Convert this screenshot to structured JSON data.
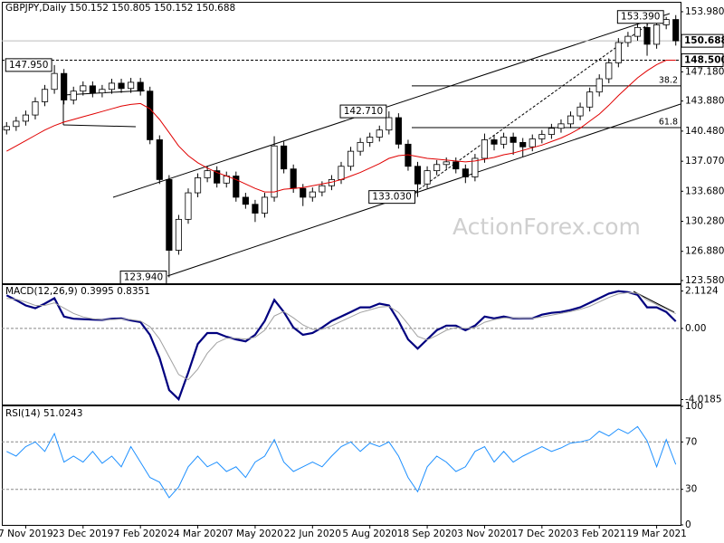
{
  "chart_data": [
    {
      "type": "candlestick",
      "title": "GBPJPY,Daily  150.152 150.805 150.152 150.688",
      "categories": [
        null,
        null,
        "7 Nov 2019",
        null,
        null,
        null,
        null,
        null,
        "23 Dec 2019",
        null,
        null,
        null,
        null,
        null,
        "7 Feb 2020",
        null,
        null,
        null,
        null,
        null,
        "24 Mar 2020",
        null,
        null,
        null,
        null,
        null,
        "7 May 2020",
        null,
        null,
        null,
        null,
        null,
        "22 Jun 2020",
        null,
        null,
        null,
        null,
        null,
        "5 Aug 2020",
        null,
        null,
        null,
        null,
        null,
        "18 Sep 2020",
        null,
        null,
        null,
        null,
        null,
        "3 Nov 2020",
        null,
        null,
        null,
        null,
        null,
        "17 Dec 2020",
        null,
        null,
        null,
        null,
        null,
        "3 Feb 2021",
        null,
        null,
        null,
        null,
        null,
        "19 Mar 2021",
        null,
        null
      ],
      "open": [
        140.6,
        141.0,
        141.6,
        142.3,
        143.8,
        145.2,
        147.0,
        144.0,
        145.0,
        145.6,
        144.8,
        145.2,
        145.9,
        145.3,
        146.0,
        145.0,
        139.5,
        135.0,
        127.0,
        130.5,
        133.5,
        135.2,
        136.0,
        134.6,
        135.4,
        133.0,
        132.2,
        131.2,
        133.0,
        138.8,
        136.2,
        134.0,
        133.0,
        133.6,
        134.3,
        135.0,
        136.5,
        138.2,
        139.2,
        139.8,
        140.6,
        142.0,
        139.0,
        136.5,
        134.5,
        136.0,
        136.7,
        137.0,
        136.2,
        135.3,
        137.4,
        139.5,
        139.0,
        139.8,
        139.2,
        138.7,
        139.6,
        140.1,
        140.8,
        141.3,
        142.2,
        143.2,
        144.9,
        146.4,
        148.2,
        150.5,
        151.2,
        152.2,
        150.3,
        152.5,
        153.1
      ],
      "high": [
        141.5,
        142.1,
        142.8,
        144.3,
        145.7,
        147.95,
        147.5,
        145.5,
        146.1,
        146.1,
        145.7,
        146.4,
        146.4,
        146.5,
        146.5,
        145.5,
        140.0,
        135.5,
        131.0,
        134.0,
        135.7,
        136.5,
        136.5,
        135.9,
        135.9,
        133.5,
        132.7,
        133.5,
        139.9,
        139.3,
        136.7,
        134.5,
        134.1,
        134.8,
        135.5,
        137.0,
        138.7,
        139.7,
        140.3,
        141.1,
        142.71,
        142.5,
        139.5,
        137.0,
        136.5,
        137.2,
        137.5,
        137.5,
        136.7,
        137.9,
        140.2,
        140.0,
        140.3,
        140.3,
        139.7,
        140.1,
        140.6,
        141.3,
        141.8,
        142.7,
        143.7,
        145.4,
        146.9,
        148.7,
        151.0,
        151.7,
        152.7,
        152.7,
        153.0,
        153.39,
        153.6
      ],
      "low": [
        140.1,
        140.5,
        141.1,
        141.8,
        143.3,
        144.7,
        143.5,
        143.5,
        144.5,
        144.3,
        144.3,
        144.7,
        144.8,
        144.8,
        144.5,
        139.0,
        134.5,
        123.94,
        126.5,
        130.0,
        133.0,
        134.7,
        134.1,
        134.1,
        132.5,
        131.7,
        130.2,
        130.7,
        132.5,
        135.7,
        133.5,
        132.0,
        132.5,
        133.1,
        133.8,
        134.5,
        136.0,
        137.7,
        138.7,
        139.3,
        140.1,
        138.5,
        136.0,
        133.03,
        134.0,
        135.5,
        136.2,
        135.7,
        134.6,
        134.8,
        136.9,
        138.3,
        138.5,
        137.8,
        137.6,
        138.2,
        139.1,
        139.6,
        140.3,
        140.8,
        141.7,
        142.7,
        144.4,
        145.9,
        147.7,
        150.0,
        150.7,
        149.0,
        149.8,
        152.0,
        150.152
      ],
      "close": [
        141.0,
        141.6,
        142.3,
        143.8,
        145.2,
        147.0,
        144.0,
        145.0,
        145.6,
        144.8,
        145.2,
        145.9,
        145.3,
        146.0,
        145.0,
        139.5,
        135.0,
        127.0,
        130.5,
        133.5,
        135.2,
        136.0,
        134.6,
        135.4,
        133.0,
        132.2,
        131.2,
        133.0,
        138.8,
        136.2,
        134.0,
        133.0,
        133.6,
        134.3,
        135.0,
        136.5,
        138.2,
        139.2,
        139.8,
        140.6,
        142.0,
        139.0,
        136.5,
        134.5,
        136.0,
        136.7,
        137.0,
        136.2,
        135.3,
        137.4,
        139.5,
        139.0,
        139.8,
        139.2,
        138.7,
        139.6,
        140.1,
        140.8,
        141.3,
        142.2,
        143.2,
        144.9,
        146.4,
        148.2,
        150.5,
        151.2,
        152.2,
        150.3,
        152.5,
        153.1,
        150.688
      ],
      "overlay": {
        "color": "#e00000",
        "values": [
          138.2,
          138.8,
          139.4,
          140.0,
          140.6,
          141.1,
          141.5,
          141.8,
          142.1,
          142.4,
          142.7,
          143.0,
          143.3,
          143.5,
          143.6,
          143.0,
          141.8,
          140.3,
          138.8,
          137.7,
          136.9,
          136.3,
          135.8,
          135.4,
          135.0,
          134.5,
          134.0,
          133.6,
          133.6,
          133.9,
          134.0,
          134.1,
          134.3,
          134.5,
          134.7,
          135.0,
          135.4,
          135.8,
          136.3,
          136.8,
          137.4,
          137.7,
          137.8,
          137.6,
          137.4,
          137.3,
          137.2,
          137.1,
          137.0,
          137.1,
          137.3,
          137.5,
          137.8,
          138.0,
          138.3,
          138.6,
          138.9,
          139.3,
          139.7,
          140.2,
          140.8,
          141.6,
          142.4,
          143.4,
          144.5,
          145.5,
          146.5,
          147.3,
          148.0,
          148.5,
          148.5
        ]
      },
      "ylim": [
        123.27,
        155.0
      ],
      "yticks": [
        {
          "value": 123.58,
          "label": "123.580"
        },
        {
          "value": 126.88,
          "label": "126.880"
        },
        {
          "value": 130.28,
          "label": "130.280"
        },
        {
          "value": 133.68,
          "label": "133.680"
        },
        {
          "value": 137.07,
          "label": "137.070"
        },
        {
          "value": 140.48,
          "label": "140.480"
        },
        {
          "value": 143.88,
          "label": "143.880"
        },
        {
          "value": 147.18,
          "label": "147.180"
        },
        {
          "value": 153.98,
          "label": "153.980"
        }
      ],
      "price_label": {
        "value": 150.688,
        "label": "150.688"
      },
      "level_line": {
        "value": 148.5,
        "label": "148.500"
      },
      "annotations": [
        {
          "value": 147.95,
          "label": "147.950"
        },
        {
          "value": 123.94,
          "label": "123.940"
        },
        {
          "value": 142.71,
          "label": "142.710"
        },
        {
          "value": 133.03,
          "label": "133.030"
        },
        {
          "value": 153.39,
          "label": "153.390"
        }
      ],
      "fib_levels": [
        {
          "value": 145.59,
          "label": "38.2"
        },
        {
          "value": 140.88,
          "label": "61.8"
        }
      ],
      "watermark": "ActionForex.com"
    },
    {
      "type": "line",
      "title": "MACD(12,26,9) 0.3995 0.8351",
      "series": [
        {
          "color": "#00007f",
          "width": 2.2,
          "values": [
            1.87,
            1.6,
            1.3,
            1.14,
            1.4,
            1.71,
            0.67,
            0.55,
            0.52,
            0.5,
            0.48,
            0.55,
            0.57,
            0.45,
            0.36,
            -0.36,
            -1.66,
            -3.48,
            -4.0,
            -2.49,
            -0.88,
            -0.26,
            -0.26,
            -0.47,
            -0.62,
            -0.73,
            -0.36,
            0.42,
            1.61,
            0.93,
            0.05,
            -0.36,
            -0.26,
            0.05,
            0.42,
            0.67,
            0.93,
            1.19,
            1.19,
            1.4,
            1.3,
            0.42,
            -0.62,
            -1.14,
            -0.62,
            -0.1,
            0.16,
            0.16,
            -0.1,
            0.16,
            0.67,
            0.57,
            0.67,
            0.57,
            0.57,
            0.57,
            0.78,
            0.88,
            0.93,
            1.04,
            1.19,
            1.45,
            1.71,
            1.97,
            2.1,
            2.05,
            1.9,
            1.19,
            1.19,
            0.93,
            0.3995
          ]
        },
        {
          "color": "#a0a0a0",
          "width": 1,
          "values": [
            1.7,
            1.65,
            1.5,
            1.3,
            1.3,
            1.45,
            1.15,
            0.85,
            0.65,
            0.55,
            0.5,
            0.5,
            0.53,
            0.5,
            0.42,
            0.1,
            -0.6,
            -1.6,
            -2.6,
            -2.9,
            -2.3,
            -1.4,
            -0.8,
            -0.55,
            -0.55,
            -0.6,
            -0.5,
            -0.1,
            0.7,
            0.95,
            0.6,
            0.2,
            -0.05,
            -0.05,
            0.15,
            0.4,
            0.65,
            0.9,
            1.05,
            1.2,
            1.25,
            0.9,
            0.25,
            -0.45,
            -0.65,
            -0.4,
            -0.1,
            0.05,
            0.0,
            0.05,
            0.35,
            0.5,
            0.6,
            0.6,
            0.58,
            0.57,
            0.65,
            0.75,
            0.85,
            0.95,
            1.08,
            1.25,
            1.5,
            1.75,
            1.95,
            2.02,
            1.98,
            1.6,
            1.35,
            1.1,
            0.8351
          ]
        }
      ],
      "ylim": [
        -4.3,
        2.45
      ],
      "yticks": [
        -4.0185,
        {
          "value": 0,
          "label": "0.00"
        },
        2.1124
      ],
      "levels": [
        0
      ]
    },
    {
      "type": "line",
      "title": "RSI(14) 51.0243",
      "series": [
        {
          "color": "#1e90ff",
          "width": 1,
          "values": [
            62,
            58,
            66,
            70,
            62,
            77,
            53,
            58,
            53,
            62,
            52,
            58,
            49,
            66,
            53,
            40,
            36,
            23,
            32,
            49,
            58,
            49,
            53,
            45,
            49,
            40,
            53,
            58,
            72,
            53,
            45,
            49,
            53,
            49,
            58,
            66,
            70,
            62,
            69,
            66,
            70,
            58,
            40,
            28,
            49,
            58,
            53,
            45,
            49,
            62,
            66,
            53,
            62,
            53,
            58,
            62,
            66,
            62,
            65,
            69,
            70,
            72,
            79,
            75,
            81,
            77,
            83,
            71,
            49,
            72,
            51.0243
          ]
        }
      ],
      "ylim": [
        0,
        100
      ],
      "yticks": [
        0,
        30,
        70,
        100
      ],
      "levels": [
        30,
        70
      ]
    }
  ]
}
